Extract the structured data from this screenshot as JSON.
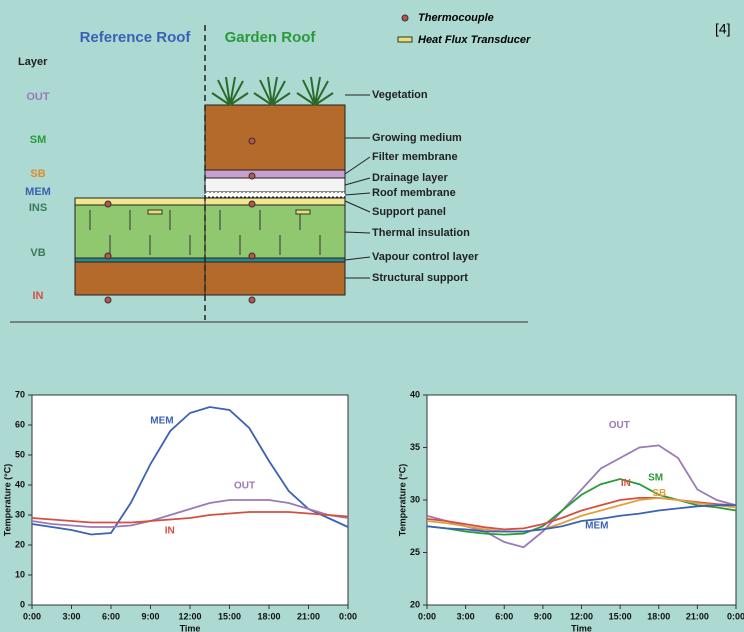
{
  "diagram": {
    "columns": [
      "Reference Roof",
      "Garden Roof"
    ],
    "legend": [
      "Thermocouple",
      "Heat Flux Transducer"
    ],
    "citation": "[4]",
    "layer_heading": "Layer",
    "layers": [
      "OUT",
      "SM",
      "SB",
      "MEM",
      "INS",
      "VB",
      "IN"
    ],
    "callouts": [
      "Vegetation",
      "Growing medium",
      "Filter membrane",
      "Drainage layer",
      "Roof membrane",
      "Support panel",
      "Thermal insulation",
      "Vapour control layer",
      "Structural support"
    ]
  },
  "chart_data": [
    {
      "type": "line",
      "y_label": "Temperature (°C)",
      "x_label": "Time",
      "x": [
        0,
        1.5,
        3,
        4.5,
        6,
        7.5,
        9,
        10.5,
        12,
        13.5,
        15,
        16.5,
        18,
        19.5,
        21,
        22.5,
        24
      ],
      "xlim": [
        0,
        24
      ],
      "xticks": [
        {
          "value": 0,
          "label": "0:00"
        },
        {
          "value": 3,
          "label": "3:00"
        },
        {
          "value": 6,
          "label": "6:00"
        },
        {
          "value": 9,
          "label": "9:00"
        },
        {
          "value": 12,
          "label": "12:00"
        },
        {
          "value": 15,
          "label": "15:00"
        },
        {
          "value": 18,
          "label": "18:00"
        },
        {
          "value": 21,
          "label": "21:00"
        },
        {
          "value": 24,
          "label": "0:00"
        }
      ],
      "ylim": [
        0,
        70
      ],
      "yticks": [
        0,
        10,
        20,
        30,
        40,
        50,
        60,
        70
      ],
      "series": [
        {
          "name": "MEM",
          "color": "#3a62b5",
          "values": [
            27,
            26,
            25,
            23.5,
            24,
            34,
            47,
            58,
            64,
            66,
            65,
            59,
            48,
            38,
            32,
            29,
            26
          ]
        },
        {
          "name": "OUT",
          "color": "#9a7ab8",
          "values": [
            28,
            27,
            26.5,
            26,
            26,
            26.5,
            28,
            30,
            32,
            34,
            35,
            35,
            35,
            34,
            32,
            30,
            29
          ]
        },
        {
          "name": "IN",
          "color": "#d35040",
          "values": [
            29,
            28.5,
            28,
            27.5,
            27.5,
            27.5,
            28,
            28.5,
            29,
            30,
            30.5,
            31,
            31,
            31,
            30.5,
            30,
            29.5
          ]
        }
      ]
    },
    {
      "type": "line",
      "y_label": "Temperature (°C)",
      "x_label": "Time",
      "x": [
        0,
        1.5,
        3,
        4.5,
        6,
        7.5,
        9,
        10.5,
        12,
        13.5,
        15,
        16.5,
        18,
        19.5,
        21,
        22.5,
        24
      ],
      "xlim": [
        0,
        24
      ],
      "xticks": [
        {
          "value": 0,
          "label": "0:00"
        },
        {
          "value": 3,
          "label": "3:00"
        },
        {
          "value": 6,
          "label": "6:00"
        },
        {
          "value": 9,
          "label": "9:00"
        },
        {
          "value": 12,
          "label": "12:00"
        },
        {
          "value": 15,
          "label": "15:00"
        },
        {
          "value": 18,
          "label": "18:00"
        },
        {
          "value": 21,
          "label": "21:00"
        },
        {
          "value": 24,
          "label": "0:00"
        }
      ],
      "ylim": [
        20,
        40
      ],
      "yticks": [
        20,
        25,
        30,
        35,
        40
      ],
      "series": [
        {
          "name": "OUT",
          "color": "#9a7ab8",
          "values": [
            28.5,
            28,
            27.5,
            27,
            26,
            25.5,
            27,
            29,
            31,
            33,
            34,
            35,
            35.2,
            34,
            31,
            30,
            29.5
          ]
        },
        {
          "name": "SM",
          "color": "#2a9a3a",
          "values": [
            27.5,
            27.3,
            27,
            26.8,
            26.7,
            26.8,
            27.5,
            29,
            30.5,
            31.5,
            32,
            31.5,
            30.5,
            30,
            29.5,
            29.3,
            29
          ]
        },
        {
          "name": "IN",
          "color": "#d35040",
          "values": [
            28.2,
            28,
            27.7,
            27.4,
            27.2,
            27.3,
            27.7,
            28.3,
            29,
            29.5,
            30,
            30.2,
            30.2,
            30,
            29.8,
            29.6,
            29.5
          ]
        },
        {
          "name": "SB",
          "color": "#e0a040",
          "values": [
            28,
            27.8,
            27.5,
            27.2,
            27,
            27,
            27.2,
            27.8,
            28.5,
            29,
            29.5,
            30,
            30.2,
            30,
            29.7,
            29.5,
            29.3
          ]
        },
        {
          "name": "MEM",
          "color": "#3a62b5",
          "values": [
            27.5,
            27.3,
            27.2,
            27,
            27,
            27,
            27.2,
            27.5,
            28,
            28.2,
            28.5,
            28.7,
            29,
            29.2,
            29.4,
            29.5,
            29.5
          ]
        }
      ]
    }
  ]
}
